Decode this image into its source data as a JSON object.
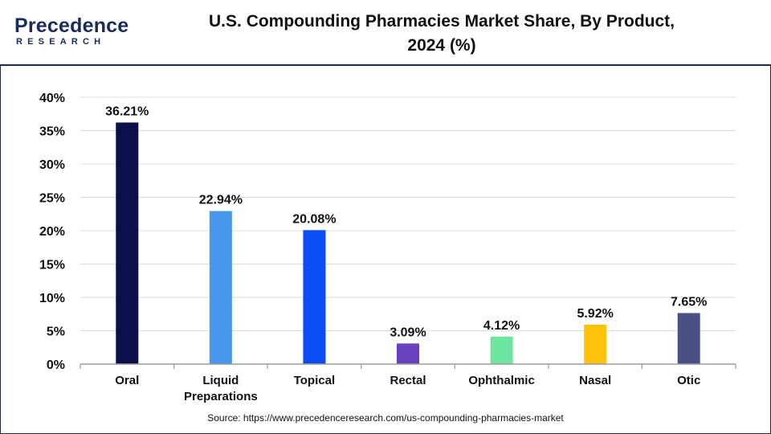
{
  "header": {
    "logo_main": "Precedence",
    "logo_sub": "RESEARCH",
    "title_line1": "U.S. Compounding Pharmacies Market Share, By Product,",
    "title_line2": "2024 (%)"
  },
  "source": "Source: https://www.precedenceresearch.com/us-compounding-pharmacies-market",
  "chart_data": {
    "type": "bar",
    "title": "U.S. Compounding Pharmacies Market Share, By Product, 2024 (%)",
    "categories": [
      "Oral",
      "Liquid Preparations",
      "Topical",
      "Rectal",
      "Ophthalmic",
      "Nasal",
      "Otic"
    ],
    "category_lines": [
      [
        "Oral"
      ],
      [
        "Liquid",
        "Preparations"
      ],
      [
        "Topical"
      ],
      [
        "Rectal"
      ],
      [
        "Ophthalmic"
      ],
      [
        "Nasal"
      ],
      [
        "Otic"
      ]
    ],
    "values": [
      36.21,
      22.94,
      20.08,
      3.09,
      4.12,
      5.92,
      7.65
    ],
    "value_labels": [
      "36.21%",
      "22.94%",
      "20.08%",
      "3.09%",
      "4.12%",
      "5.92%",
      "7.65%"
    ],
    "colors": [
      "#0b0f4a",
      "#4797ee",
      "#0a4df5",
      "#6840c0",
      "#6fe6a0",
      "#ffc20a",
      "#4a4f86"
    ],
    "ylim": [
      0,
      40
    ],
    "yticks": [
      0,
      5,
      10,
      15,
      20,
      25,
      30,
      35,
      40
    ],
    "ytick_labels": [
      "0%",
      "5%",
      "10%",
      "15%",
      "20%",
      "25%",
      "30%",
      "35%",
      "40%"
    ],
    "grid": true,
    "legend": "none",
    "xlabel": "",
    "ylabel": ""
  }
}
